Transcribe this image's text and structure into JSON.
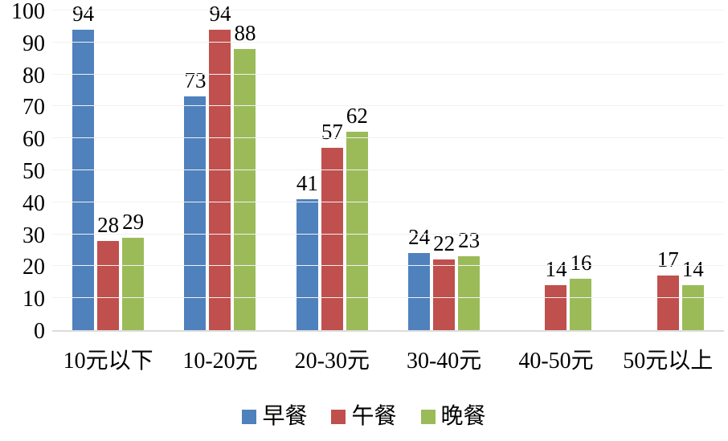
{
  "chart_data": {
    "type": "bar",
    "title": "",
    "xlabel": "",
    "ylabel": "",
    "categories": [
      "10元以下",
      "10-20元",
      "20-30元",
      "30-40元",
      "40-50元",
      "50元以上"
    ],
    "series": [
      {
        "name": "早餐",
        "color": "#4F81BD",
        "values": [
          94,
          73,
          41,
          24,
          null,
          null
        ]
      },
      {
        "name": "午餐",
        "color": "#C0504D",
        "values": [
          28,
          94,
          57,
          22,
          14,
          17
        ]
      },
      {
        "name": "晚餐",
        "color": "#9BBB59",
        "values": [
          29,
          88,
          62,
          23,
          16,
          14
        ]
      }
    ],
    "ylim": [
      0,
      100
    ],
    "yticks": [
      0,
      10,
      20,
      30,
      40,
      50,
      60,
      70,
      80,
      90,
      100
    ],
    "grid": true,
    "gridline_color": "#f1f1f1",
    "baseline_color": "#dcdcdc",
    "data_labels": true,
    "legend_position": "bottom",
    "legend_labels": [
      "早餐",
      "午餐",
      "晚餐"
    ],
    "background_color": "#ffffff"
  }
}
